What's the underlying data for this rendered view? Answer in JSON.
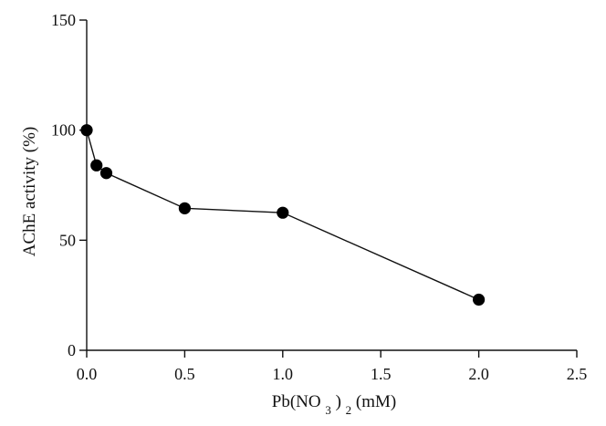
{
  "chart_data": {
    "type": "line",
    "title": "",
    "xlabel": {
      "prefix": "Pb(NO",
      "subscript1": "3",
      "middle": ")",
      "subscript2": "2",
      "suffix": " (mM)"
    },
    "ylabel": "AChE activity (%)",
    "xlim": [
      0,
      2.5
    ],
    "ylim": [
      0,
      150
    ],
    "x_ticks": [
      0,
      0.5,
      1.0,
      1.5,
      2.0,
      2.5
    ],
    "x_tick_labels": [
      "0.0",
      "0.5",
      "1.0",
      "1.5",
      "2.0",
      "2.5"
    ],
    "y_ticks": [
      0,
      50,
      100,
      150
    ],
    "y_tick_labels": [
      "0",
      "50",
      "100",
      "150"
    ],
    "grid": false,
    "series": [
      {
        "name": "AChE activity",
        "x": [
          0,
          0.05,
          0.1,
          0.5,
          1.0,
          2.0
        ],
        "y": [
          100,
          84,
          80.5,
          64.5,
          62.5,
          23
        ]
      }
    ],
    "colors": {
      "axis": "#111111",
      "line": "#111111",
      "marker": "#000000"
    }
  }
}
